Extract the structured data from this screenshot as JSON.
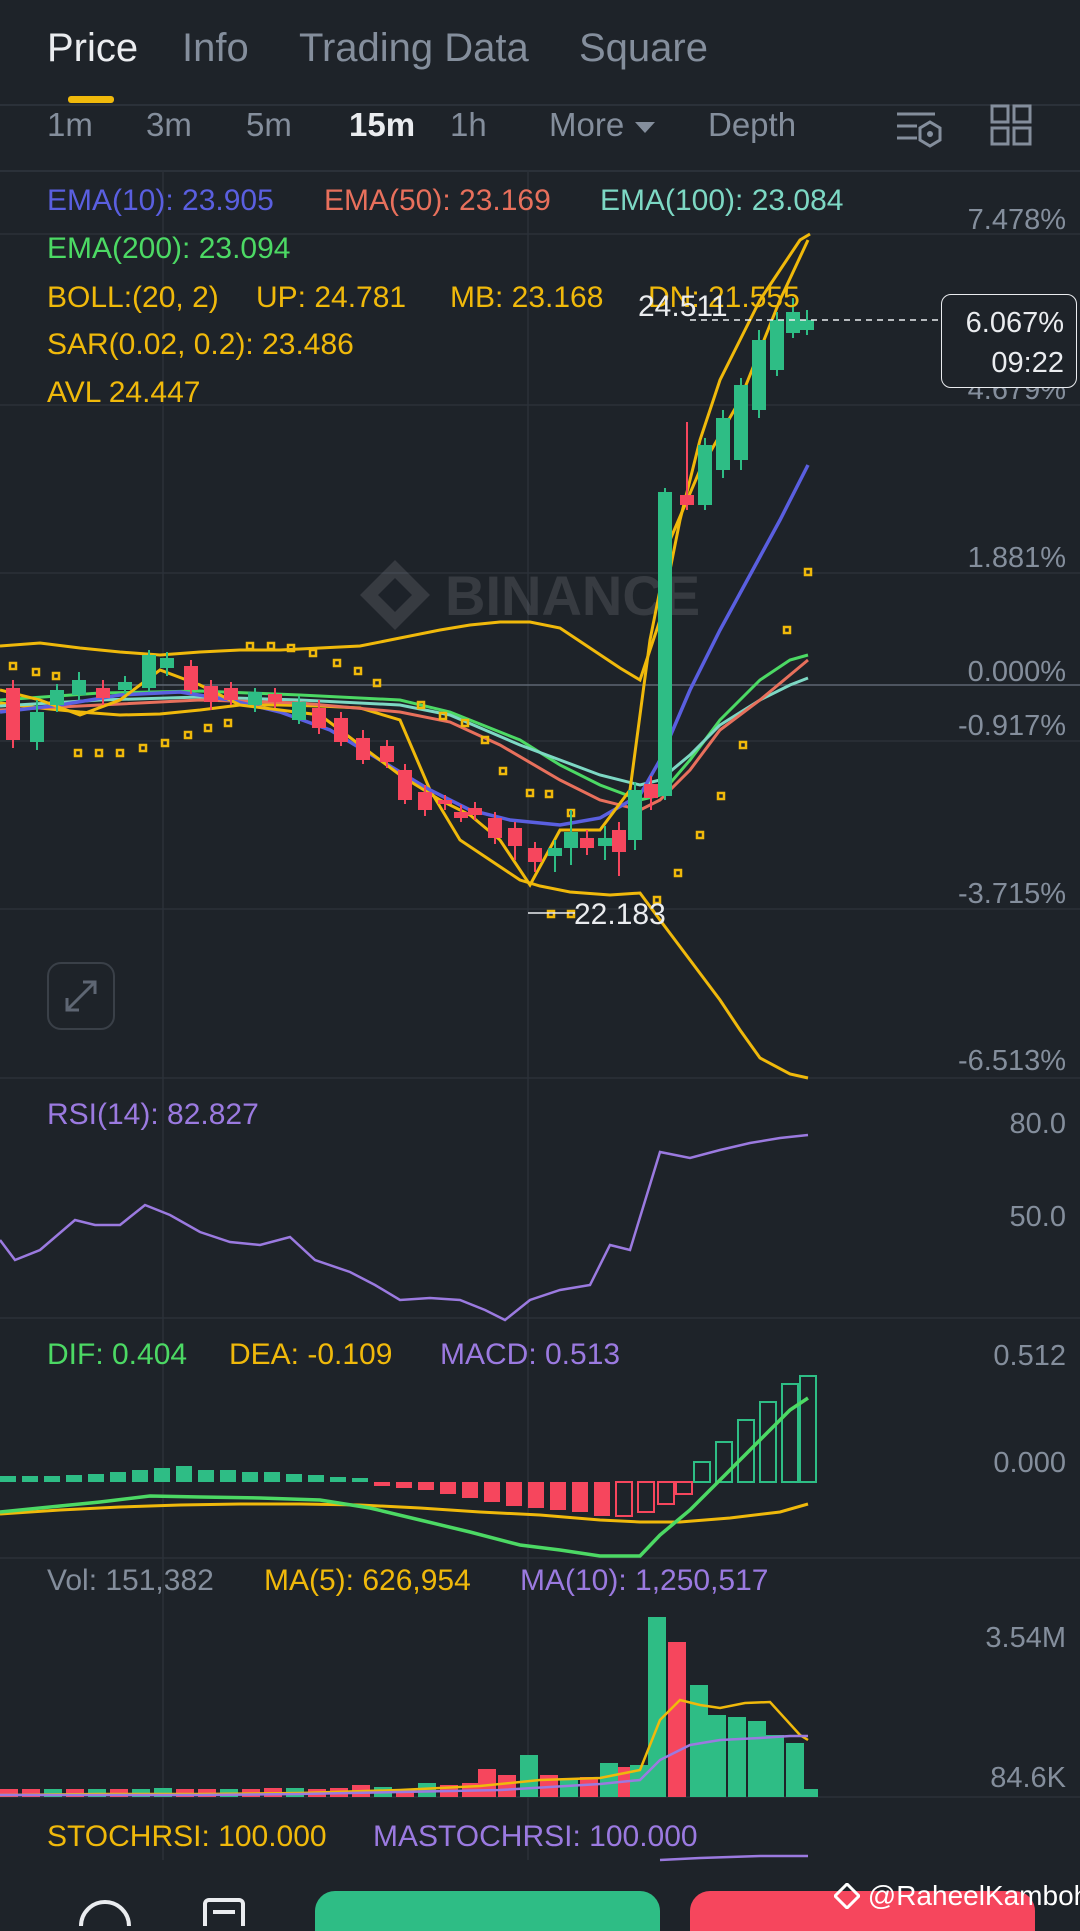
{
  "tabs": [
    "Price",
    "Info",
    "Trading Data",
    "Square"
  ],
  "active_tab": "Price",
  "intervals": [
    "1m",
    "3m",
    "5m",
    "15m",
    "1h"
  ],
  "active_interval": "15m",
  "more_label": "More",
  "depth_label": "Depth",
  "indicators": {
    "ema10": "EMA(10): 23.905",
    "ema50": "EMA(50): 23.169",
    "ema100": "EMA(100): 23.084",
    "ema200": "EMA(200): 23.094",
    "boll": "BOLL:(20, 2)",
    "boll_up": "UP: 24.781",
    "boll_mb": "MB: 23.168",
    "boll_dn": "DN: 21.555",
    "sar": "SAR(0.02, 0.2): 23.486",
    "avl": "AVL 24.447"
  },
  "watermark": "BINANCE",
  "price_axis": [
    "7.478%",
    "4.679%",
    "1.881%",
    "0.000%",
    "-0.917%",
    "-3.715%",
    "-6.513%"
  ],
  "current_tag": {
    "percent": "6.067%",
    "countdown": "09:22"
  },
  "high_marker": "24.511",
  "low_marker": "22.183",
  "rsi": {
    "label": "RSI(14): 82.827",
    "axis": [
      "80.0",
      "50.0"
    ]
  },
  "macd": {
    "dif": "DIF: 0.404",
    "dea": "DEA: -0.109",
    "macd": "MACD: 0.513",
    "axis": [
      "0.512",
      "0.000"
    ]
  },
  "volume": {
    "vol": "Vol: 151,382",
    "ma5": "MA(5): 626,954",
    "ma10": "MA(10): 1,250,517",
    "axis": [
      "3.54M",
      "84.6K"
    ]
  },
  "stochrsi": {
    "stoch": "STOCHRSI: 100.000",
    "mastoch": "MASTOCHRSI: 100.000"
  },
  "watermark_user": "@RaheelKamboh",
  "colors": {
    "up": "#2ebd85",
    "down": "#f6465d",
    "accent": "#f0b90b",
    "ema10": "#5a5fe0",
    "ema50": "#e8705c",
    "ema100": "#7dd8c4",
    "ema200": "#4cd964",
    "purple": "#9b7ae0"
  }
}
